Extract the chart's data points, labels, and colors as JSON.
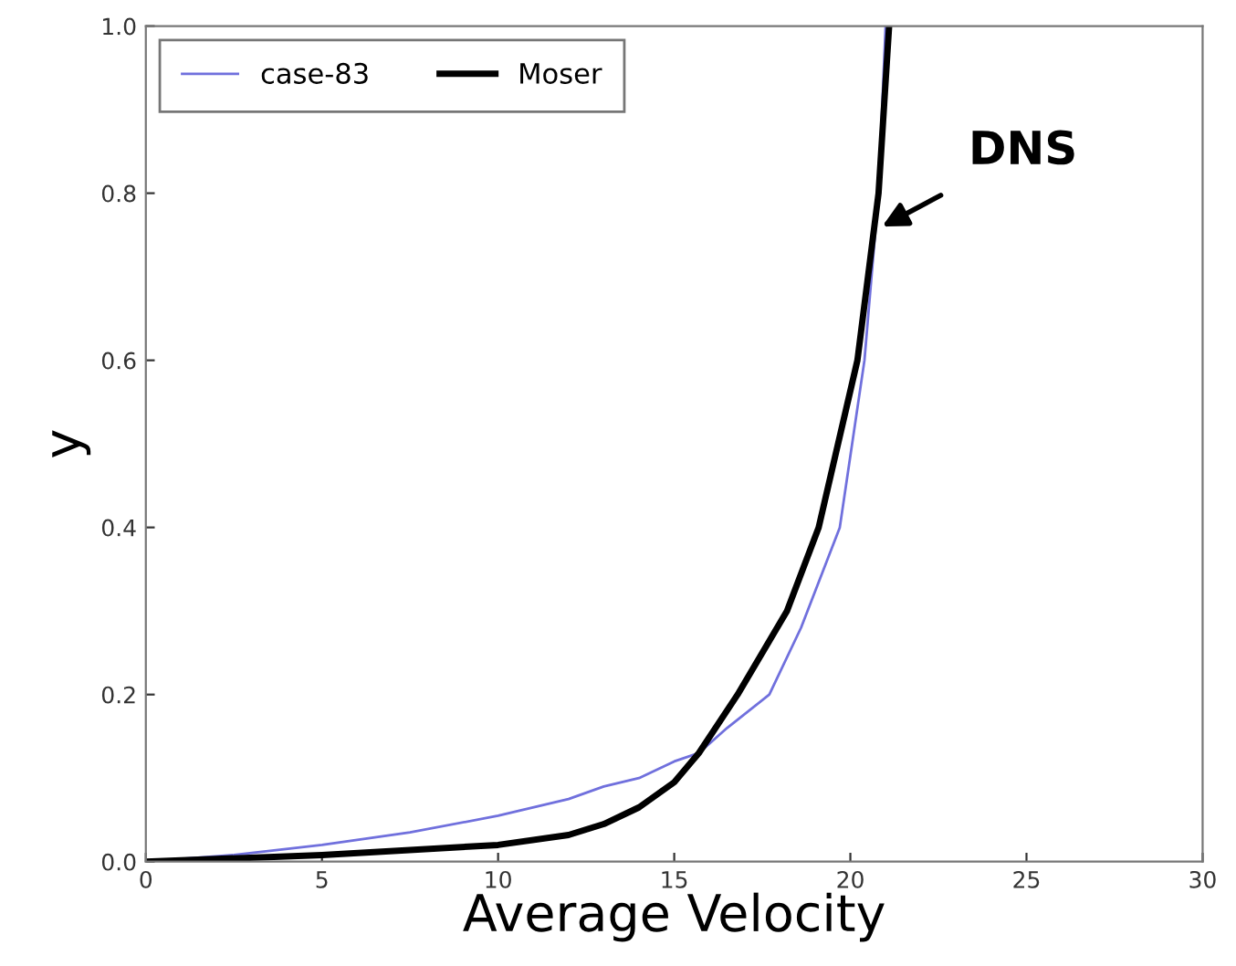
{
  "chart_data": {
    "type": "line",
    "xlabel": "Average Velocity",
    "ylabel": "y",
    "xlim": [
      0,
      30
    ],
    "ylim": [
      0,
      1.0
    ],
    "xticks": [
      0,
      5,
      10,
      15,
      20,
      25,
      30
    ],
    "yticks": [
      {
        "value": 0,
        "label": "0.0"
      },
      0.2,
      0.4,
      0.6,
      0.8,
      {
        "value": 1.0,
        "label": "1.0"
      }
    ],
    "legend": "top left",
    "grid": false,
    "series": [
      {
        "name": "case-83",
        "color": "#7070dd",
        "x": [
          0,
          2.5,
          5,
          7.5,
          10,
          12,
          13,
          14,
          15,
          15.7,
          16.5,
          17.7,
          18.6,
          19.7,
          20.4,
          20.8,
          21.0
        ],
        "values": [
          0,
          0.008,
          0.02,
          0.035,
          0.055,
          0.075,
          0.09,
          0.1,
          0.12,
          0.13,
          0.16,
          0.2,
          0.28,
          0.4,
          0.6,
          0.8,
          1.0
        ]
      },
      {
        "name": "Moser",
        "color": "#000000",
        "x": [
          0,
          5,
          10,
          12,
          13,
          14,
          15,
          15.7,
          16.8,
          18.2,
          19.1,
          20.2,
          20.8,
          21.1
        ],
        "values": [
          0,
          0.008,
          0.02,
          0.032,
          0.045,
          0.065,
          0.095,
          0.13,
          0.2,
          0.3,
          0.4,
          0.6,
          0.8,
          1.0
        ]
      }
    ],
    "annotations": [
      {
        "text": "DNS",
        "x": 20.9,
        "y": 0.76
      }
    ]
  }
}
